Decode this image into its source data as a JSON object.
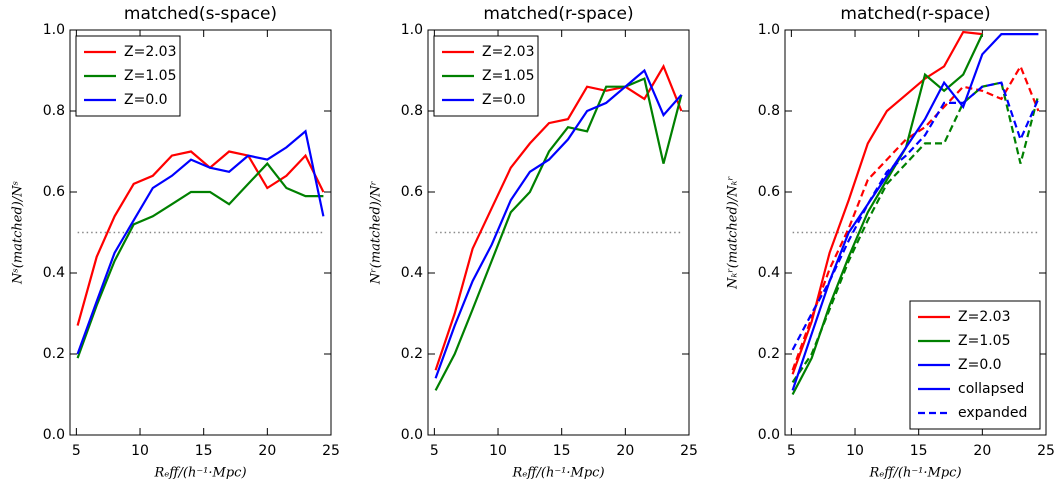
{
  "chart_data": [
    {
      "type": "line",
      "title": "matched(s-space)",
      "xlabel": "Rₑff/(h⁻¹·Mpc)",
      "ylabel": "Nˢ(matched)/Nˢ",
      "x": [
        5.1,
        6.6,
        8.0,
        9.5,
        11.0,
        12.5,
        14.0,
        15.5,
        17.0,
        18.5,
        20.0,
        21.5,
        23.0,
        24.4
      ],
      "series": [
        {
          "name": "Z=2.03",
          "color": "#ff0000",
          "values": [
            0.27,
            0.44,
            0.54,
            0.62,
            0.64,
            0.69,
            0.7,
            0.66,
            0.7,
            0.69,
            0.61,
            0.64,
            0.69,
            0.6
          ]
        },
        {
          "name": "Z=1.05",
          "color": "#008000",
          "values": [
            0.19,
            0.32,
            0.43,
            0.52,
            0.54,
            0.57,
            0.6,
            0.6,
            0.57,
            0.62,
            0.67,
            0.61,
            0.59,
            0.59
          ]
        },
        {
          "name": "Z=0.0",
          "color": "#0000ff",
          "values": [
            0.2,
            0.33,
            0.45,
            0.53,
            0.61,
            0.64,
            0.68,
            0.66,
            0.65,
            0.69,
            0.68,
            0.71,
            0.75,
            0.54
          ]
        }
      ],
      "xlim": [
        4.5,
        25
      ],
      "ylim": [
        0,
        1
      ],
      "xticks": [
        5,
        10,
        15,
        20,
        25
      ],
      "yticks": [
        {
          "value": 0,
          "label": "0.0"
        },
        0.2,
        0.4,
        0.6,
        0.8,
        {
          "value": 1,
          "label": "1.0"
        }
      ],
      "hline": 0.5,
      "legend_loc": "upper left"
    },
    {
      "type": "line",
      "title": "matched(r-space)",
      "xlabel": "Rₑff/(h⁻¹·Mpc)",
      "ylabel": "Nʳ(matched)/Nʳ",
      "x": [
        5.1,
        6.6,
        8.0,
        9.5,
        11.0,
        12.5,
        14.0,
        15.5,
        17.0,
        18.5,
        20.0,
        21.5,
        23.0,
        24.4
      ],
      "series": [
        {
          "name": "Z=2.03",
          "color": "#ff0000",
          "values": [
            0.16,
            0.3,
            0.46,
            0.56,
            0.66,
            0.72,
            0.77,
            0.78,
            0.86,
            0.85,
            0.86,
            0.83,
            0.91,
            0.8
          ]
        },
        {
          "name": "Z=1.05",
          "color": "#008000",
          "values": [
            0.11,
            0.2,
            0.31,
            0.43,
            0.55,
            0.6,
            0.7,
            0.76,
            0.75,
            0.86,
            0.86,
            0.88,
            0.67,
            0.84
          ]
        },
        {
          "name": "Z=0.0",
          "color": "#0000ff",
          "values": [
            0.14,
            0.27,
            0.38,
            0.47,
            0.58,
            0.65,
            0.68,
            0.73,
            0.8,
            0.82,
            0.86,
            0.9,
            0.79,
            0.84
          ]
        }
      ],
      "xlim": [
        4.5,
        25
      ],
      "ylim": [
        0,
        1
      ],
      "xticks": [
        5,
        10,
        15,
        20,
        25
      ],
      "yticks": [
        {
          "value": 0,
          "label": "0.0"
        },
        0.2,
        0.4,
        0.6,
        0.8,
        {
          "value": 1,
          "label": "1.0"
        }
      ],
      "hline": 0.5,
      "legend_loc": "upper left"
    },
    {
      "type": "line",
      "title": "matched(r-space)",
      "xlabel": "Rₑff/(h⁻¹·Mpc)",
      "ylabel": "Nₖʳ(matched)/Nₖʳ",
      "x": [
        5.1,
        6.6,
        8.0,
        9.5,
        11.0,
        12.5,
        14.0,
        15.5,
        17.0,
        18.5,
        20.0,
        21.5,
        23.0,
        24.4
      ],
      "series": [
        {
          "name": "Z=2.03",
          "color": "#ff0000",
          "values": [
            0.15,
            0.28,
            0.45,
            0.58,
            0.72,
            0.8,
            0.84,
            0.88,
            0.91,
            0.995,
            0.99,
            null,
            null,
            null
          ],
          "values_expanded": [
            0.16,
            0.29,
            0.41,
            0.51,
            0.63,
            0.68,
            0.73,
            0.76,
            0.81,
            0.86,
            0.85,
            0.83,
            0.91,
            0.8
          ]
        },
        {
          "name": "Z=1.05",
          "color": "#008000",
          "values": [
            0.1,
            0.19,
            0.32,
            0.44,
            0.55,
            0.63,
            0.71,
            0.89,
            0.85,
            0.89,
            0.99,
            null,
            null,
            null
          ],
          "values_expanded": [
            0.13,
            0.2,
            0.31,
            0.43,
            0.53,
            0.62,
            0.67,
            0.72,
            0.72,
            0.82,
            0.86,
            0.87,
            0.67,
            0.84
          ]
        },
        {
          "name": "Z=0.0",
          "color": "#0000ff",
          "values": [
            0.11,
            0.25,
            0.38,
            0.5,
            0.57,
            0.64,
            0.71,
            0.78,
            0.87,
            0.81,
            0.94,
            0.99,
            0.99,
            0.99
          ],
          "values_expanded": [
            0.21,
            0.3,
            0.38,
            0.48,
            0.57,
            0.65,
            0.69,
            0.74,
            0.82,
            0.82,
            0.86,
            0.87,
            0.73,
            0.83
          ]
        }
      ],
      "styles": [
        {
          "name": "collapsed",
          "dash": "none",
          "color": "#0000ff"
        },
        {
          "name": "expanded",
          "dash": "7,4",
          "color": "#0000ff"
        }
      ],
      "xlim": [
        4.5,
        25
      ],
      "ylim": [
        0,
        1
      ],
      "xticks": [
        5,
        10,
        15,
        20,
        25
      ],
      "yticks": [
        {
          "value": 0,
          "label": "0.0"
        },
        0.2,
        0.4,
        0.6,
        0.8,
        {
          "value": 1,
          "label": "1.0"
        }
      ],
      "hline": 0.5,
      "legend_loc": "lower right"
    }
  ]
}
